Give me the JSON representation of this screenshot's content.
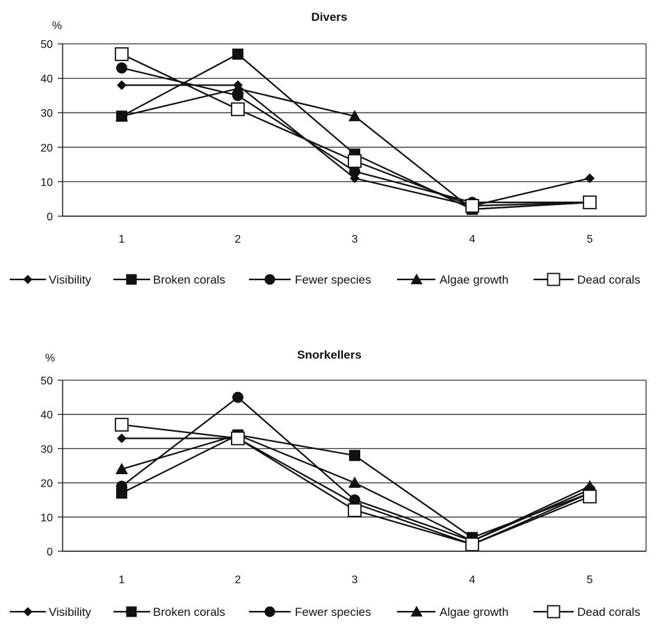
{
  "chart_data": [
    {
      "type": "line",
      "title": "Divers",
      "ylabel": "%",
      "xlabel": "",
      "categories": [
        "1",
        "2",
        "3",
        "4",
        "5"
      ],
      "ylim": [
        0,
        50
      ],
      "yticks": [
        "0",
        "10",
        "20",
        "30",
        "40",
        "50"
      ],
      "grid": true,
      "legend_position": "bottom",
      "series": [
        {
          "name": "Visibility",
          "marker": "diamond",
          "values": [
            38,
            38,
            11,
            3,
            11
          ]
        },
        {
          "name": "Broken corals",
          "marker": "square",
          "values": [
            29,
            47,
            18,
            2,
            4
          ]
        },
        {
          "name": "Fewer species",
          "marker": "circle",
          "values": [
            43,
            35,
            13,
            4,
            4
          ]
        },
        {
          "name": "Algae growth",
          "marker": "triangle",
          "values": [
            29,
            37,
            29,
            2,
            4
          ]
        },
        {
          "name": "Dead corals",
          "marker": "open-square",
          "values": [
            47,
            31,
            16,
            3,
            4
          ]
        }
      ]
    },
    {
      "type": "line",
      "title": "Snorkellers",
      "ylabel": "%",
      "xlabel": "",
      "categories": [
        "1",
        "2",
        "3",
        "4",
        "5"
      ],
      "ylim": [
        0,
        50
      ],
      "yticks": [
        "0",
        "10",
        "20",
        "30",
        "40",
        "50"
      ],
      "grid": true,
      "legend_position": "bottom",
      "series": [
        {
          "name": "Visibility",
          "marker": "diamond",
          "values": [
            33,
            33,
            14,
            2,
            17
          ]
        },
        {
          "name": "Broken corals",
          "marker": "square",
          "values": [
            17,
            34,
            28,
            4,
            17
          ]
        },
        {
          "name": "Fewer species",
          "marker": "circle",
          "values": [
            19,
            45,
            15,
            3,
            18
          ]
        },
        {
          "name": "Algae growth",
          "marker": "triangle",
          "values": [
            24,
            34,
            20,
            3,
            19
          ]
        },
        {
          "name": "Dead corals",
          "marker": "open-square",
          "values": [
            37,
            33,
            12,
            2,
            16
          ]
        }
      ]
    }
  ]
}
